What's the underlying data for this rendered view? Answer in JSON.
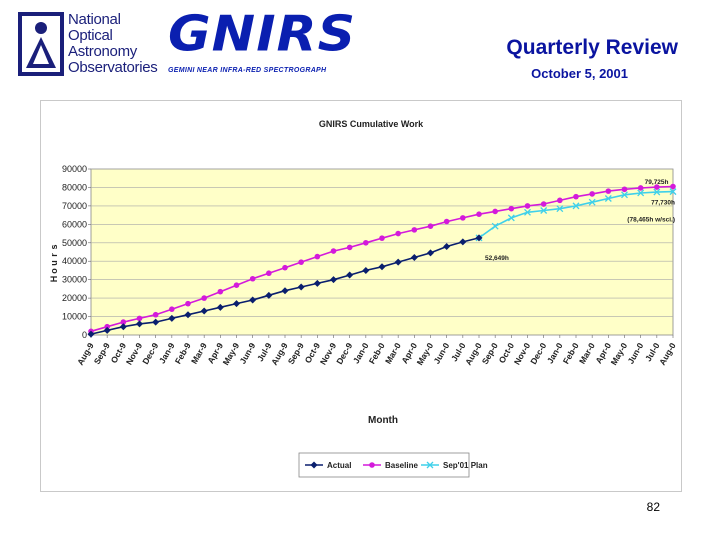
{
  "header": {
    "org_lines": [
      "National",
      "Optical",
      "Astronomy",
      "Observatories"
    ],
    "logo_name": "GNIRS",
    "logo_subtitle": "GEMINI NEAR INFRA-RED SPECTROGRAPH",
    "title": "Quarterly Review",
    "date": "October 5, 2001"
  },
  "page_number": "82",
  "chart_data": {
    "type": "line",
    "title": "GNIRS Cumulative Work",
    "xlabel": "Month",
    "ylabel": "Hours",
    "ylim": [
      0,
      90000
    ],
    "yticks": [
      0,
      10000,
      20000,
      30000,
      40000,
      50000,
      60000,
      70000,
      80000,
      90000
    ],
    "grid": "horizontal",
    "plot_background": "#ffffc8",
    "legend_position": "bottom",
    "categories": [
      "Aug-98",
      "Sep-98",
      "Oct-98",
      "Nov-98",
      "Dec-98",
      "Jan-99",
      "Feb-99",
      "Mar-99",
      "Apr-99",
      "May-99",
      "Jun-99",
      "Jul-99",
      "Aug-99",
      "Sep-99",
      "Oct-99",
      "Nov-99",
      "Dec-99",
      "Jan-00",
      "Feb-00",
      "Mar-00",
      "Apr-00",
      "May-00",
      "Jun-00",
      "Jul-00",
      "Aug-00",
      "Sep-00",
      "Oct-00",
      "Nov-00",
      "Dec-00",
      "Jan-01",
      "Feb-01",
      "Mar-01",
      "Apr-01",
      "May-01",
      "Jun-01",
      "Jul-01",
      "Aug-01"
    ],
    "category_labels": [
      "Aug-9",
      "Sep-9",
      "Oct-9",
      "Nov-9",
      "Dec-9",
      "Jan-9",
      "Feb-9",
      "Mar-9",
      "Apr-9",
      "May-9",
      "Jun-9",
      "Jul-9",
      "Aug-9",
      "Sep-9",
      "Oct-9",
      "Nov-9",
      "Dec-9",
      "Jan-0",
      "Feb-0",
      "Mar-0",
      "Apr-0",
      "May-0",
      "Jun-0",
      "Jul-0",
      "Aug-0",
      "Sep-0",
      "Oct-0",
      "Nov-0",
      "Dec-0",
      "Jan-0",
      "Feb-0",
      "Mar-0",
      "Apr-0",
      "May-0",
      "Jun-0",
      "Jul-0",
      "Aug-0"
    ],
    "series": [
      {
        "name": "Actual",
        "color": "#0a1f6e",
        "marker": "diamond",
        "values": [
          500,
          2500,
          4500,
          6000,
          7000,
          9000,
          11000,
          13000,
          15000,
          17000,
          19000,
          21500,
          24000,
          26000,
          28000,
          30000,
          32500,
          35000,
          37000,
          39500,
          42000,
          44500,
          48000,
          50500,
          52649,
          null,
          null,
          null,
          null,
          null,
          null,
          null,
          null,
          null,
          null,
          null,
          null
        ]
      },
      {
        "name": "Baseline",
        "color": "#d41adb",
        "marker": "circle",
        "values": [
          2000,
          4500,
          7000,
          9000,
          11000,
          14000,
          17000,
          20000,
          23500,
          27000,
          30500,
          33500,
          36500,
          39500,
          42500,
          45500,
          47500,
          50000,
          52500,
          55000,
          57000,
          59000,
          61500,
          63500,
          65500,
          67000,
          68500,
          70000,
          71000,
          73000,
          75000,
          76500,
          78000,
          79000,
          79725,
          80200,
          80500
        ]
      },
      {
        "name": "Sep'01 Plan",
        "color": "#3fd0ea",
        "marker": "x",
        "values": [
          null,
          null,
          null,
          null,
          null,
          null,
          null,
          null,
          null,
          null,
          null,
          null,
          null,
          null,
          null,
          null,
          null,
          null,
          null,
          null,
          null,
          null,
          null,
          null,
          52649,
          59000,
          63500,
          66500,
          67500,
          68500,
          70000,
          72000,
          74000,
          76000,
          77000,
          77500,
          77730
        ]
      }
    ],
    "annotations": [
      {
        "text": "52,649h",
        "category": "Aug-00",
        "value": 52649,
        "placement": "below-right"
      },
      {
        "text": "79,725h",
        "category": "Jun-01",
        "value": 79725,
        "placement": "above"
      },
      {
        "text": "77,730h",
        "category": "Aug-01",
        "value": 77730,
        "placement": "below"
      },
      {
        "text": "(78,465h w/sci.)",
        "category": "Aug-01",
        "value": 77730,
        "placement": "below-further"
      }
    ]
  }
}
